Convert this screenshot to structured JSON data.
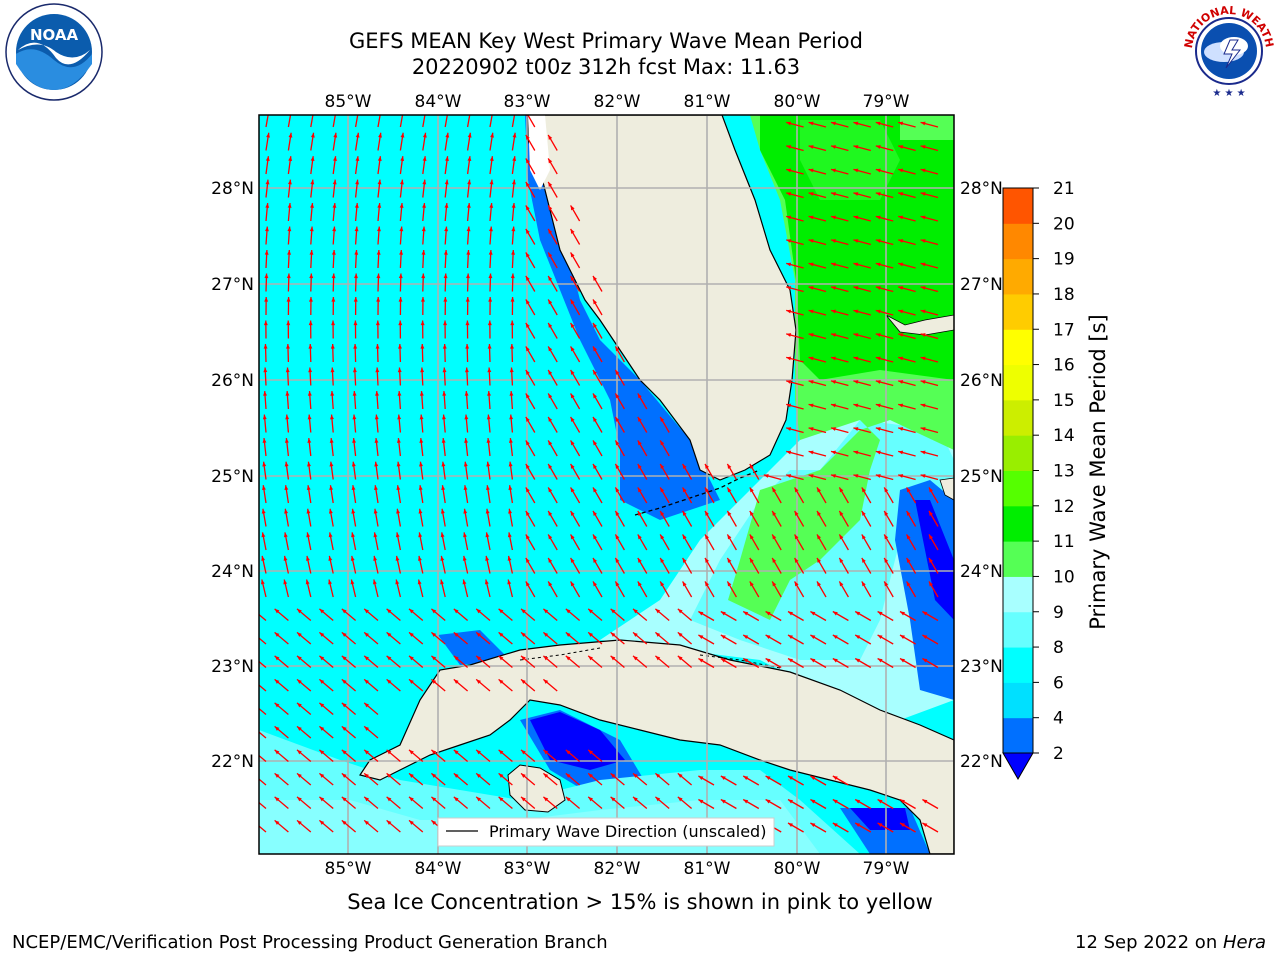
{
  "header": {
    "title_line1": "GEFS MEAN Key West Primary Wave Mean Period",
    "title_line2": "20220902 t00z 312h fcst   Max: 11.63"
  },
  "logos": {
    "left": {
      "name": "NOAA",
      "ring_text": "NATIONAL OCEANIC AND ATMOSPHERIC ADMINISTRATION · U.S. DEPARTMENT OF COMMERCE"
    },
    "right": {
      "ring_text": "NATIONAL WEATHER SERVICE"
    }
  },
  "map": {
    "lon_labels": [
      "85°W",
      "84°W",
      "83°W",
      "82°W",
      "81°W",
      "80°W",
      "79°W"
    ],
    "lat_labels": [
      "28°N",
      "27°N",
      "26°N",
      "25°N",
      "24°N",
      "23°N",
      "22°N"
    ],
    "legend_label": "Primary Wave Direction (unscaled)",
    "colors": {
      "ocean_cyan": "#00ffff",
      "land": "#eeedde",
      "green": "#00ff00",
      "arrow": "#ff0000",
      "grid": "#b0b0b0"
    }
  },
  "colorbar": {
    "title": "Primary Wave Mean Period [s]",
    "ticks": [
      "2",
      "4",
      "6",
      "8",
      "9",
      "10",
      "11",
      "12",
      "13",
      "14",
      "15",
      "16",
      "17",
      "18",
      "19",
      "20",
      "21"
    ],
    "colors": [
      "#0070ff",
      "#00e0ff",
      "#00ffff",
      "#66ffff",
      "#a8ffff",
      "#55ff55",
      "#00ee00",
      "#55ff00",
      "#99ee00",
      "#ccee00",
      "#eeff00",
      "#ffff00",
      "#ffcc00",
      "#ffaa00",
      "#ff8800",
      "#ff5500",
      "#ff2200",
      "#ff0000"
    ],
    "under_color": "#0000ff"
  },
  "footer": {
    "note": "Sea Ice Concentration > 15% is shown in pink to yellow",
    "left": "NCEP/EMC/Verification Post Processing Product Generation Branch",
    "right_prefix": "12 Sep 2022 on ",
    "right_machine": "Hera"
  }
}
